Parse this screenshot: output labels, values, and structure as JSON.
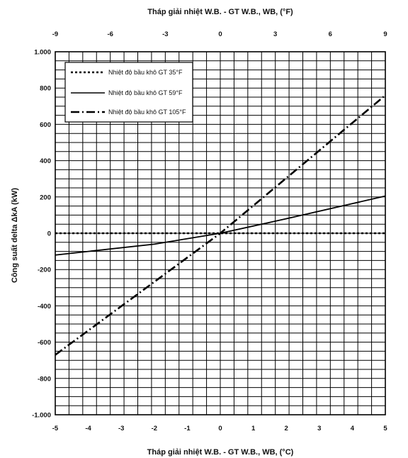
{
  "chart_data": {
    "type": "line",
    "title_top": "Tháp giải nhiệt W.B. - GT W.B., WB, (°F)",
    "xlabel": "Tháp giải nhiệt W.B. - GT W.B., WB, (°C)",
    "ylabel": "Công suất delta ΔkA (kW)",
    "xlim": [
      -5,
      5
    ],
    "ylim": [
      -1000,
      1000
    ],
    "x_ticks": [
      "-5",
      "-4",
      "-3",
      "-2",
      "-1",
      "0",
      "1",
      "2",
      "3",
      "4",
      "5"
    ],
    "x_top_ticks": [
      {
        "value": -5,
        "label": "-9"
      },
      {
        "value": -3.333,
        "label": "-6"
      },
      {
        "value": -1.667,
        "label": "-3"
      },
      {
        "value": 0,
        "label": "0"
      },
      {
        "value": 1.667,
        "label": "3"
      },
      {
        "value": 3.333,
        "label": "6"
      },
      {
        "value": 5,
        "label": "9"
      }
    ],
    "y_ticks": [
      {
        "value": 1000,
        "label": "1.000"
      },
      {
        "value": 800,
        "label": "800"
      },
      {
        "value": 600,
        "label": "600"
      },
      {
        "value": 400,
        "label": "400"
      },
      {
        "value": 200,
        "label": "200"
      },
      {
        "value": 0,
        "label": "0"
      },
      {
        "value": -200,
        "label": "-200"
      },
      {
        "value": -400,
        "label": "-400"
      },
      {
        "value": -600,
        "label": "-600"
      },
      {
        "value": -800,
        "label": "-800"
      },
      {
        "value": -1000,
        "label": "-1.000"
      }
    ],
    "grid": true,
    "legend_position": "top-left",
    "series": [
      {
        "name": "Nhiệt độ bầu khô GT 35°F",
        "style": "dotted",
        "x": [
          -5,
          5
        ],
        "y": [
          0,
          0
        ]
      },
      {
        "name": "Nhiệt độ bầu khô GT 59°F",
        "style": "solid",
        "x": [
          -5,
          -2,
          0,
          2,
          5
        ],
        "y": [
          -120,
          -60,
          0,
          80,
          205
        ]
      },
      {
        "name": "Nhiệt độ bầu khô GT 105°F",
        "style": "dashdot",
        "x": [
          -5,
          0,
          5
        ],
        "y": [
          -670,
          0,
          760
        ]
      }
    ]
  }
}
